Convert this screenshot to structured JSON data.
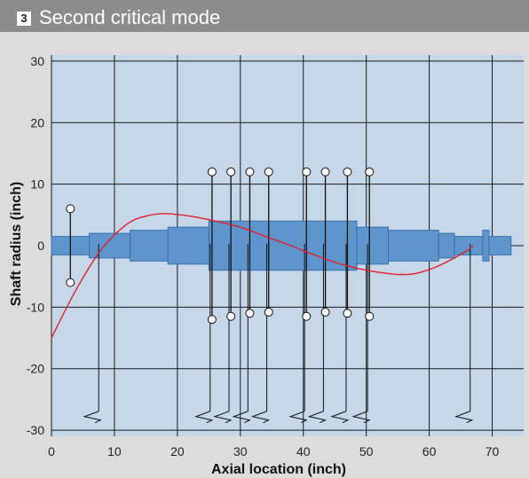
{
  "header": {
    "number": "3",
    "title": "Second critical mode"
  },
  "axes": {
    "xlabel": "Axial location (inch)",
    "ylabel": "Shaft radius (inch)",
    "xlim": [
      0,
      75
    ],
    "ylim": [
      -31,
      31
    ],
    "xticks": [
      "0",
      "10",
      "20",
      "30",
      "40",
      "50",
      "60",
      "70"
    ],
    "yticks": [
      "30",
      "20",
      "10",
      "0",
      "-10",
      "-20",
      "-30"
    ]
  },
  "colors": {
    "header_bg": "#8c8c8c",
    "panel_bg": "#dcdcdc",
    "plot_bg": "#c6d7ea",
    "grid": "#1a1a1a",
    "shaft_fill": "#5e95cc",
    "shaft_stroke": "#3a6fa8",
    "mode_curve": "#e0202a"
  },
  "shaft_sections": [
    {
      "x0": 0,
      "x1": 6,
      "r": 1.5
    },
    {
      "x0": 6,
      "x1": 12.5,
      "r": 2
    },
    {
      "x0": 12.5,
      "x1": 18.5,
      "r": 2.5
    },
    {
      "x0": 18.5,
      "x1": 25,
      "r": 3
    },
    {
      "x0": 25,
      "x1": 48.5,
      "r": 4
    },
    {
      "x0": 48.5,
      "x1": 53.5,
      "r": 3
    },
    {
      "x0": 53.5,
      "x1": 61.5,
      "r": 2.5
    },
    {
      "x0": 61.5,
      "x1": 64,
      "r": 2
    },
    {
      "x0": 64,
      "x1": 68.5,
      "r": 1.5
    },
    {
      "x0": 68.5,
      "x1": 69.5,
      "r": 2.5
    },
    {
      "x0": 69.5,
      "x1": 73,
      "r": 1.5
    }
  ],
  "mode_shape": [
    [
      0,
      -15
    ],
    [
      4,
      -7
    ],
    [
      8,
      -0.5
    ],
    [
      12,
      3.5
    ],
    [
      15,
      4.8
    ],
    [
      18,
      5.2
    ],
    [
      22,
      4.8
    ],
    [
      26,
      4
    ],
    [
      30,
      3
    ],
    [
      34,
      1.5
    ],
    [
      38,
      0
    ],
    [
      42,
      -1.6
    ],
    [
      46,
      -3
    ],
    [
      50,
      -4
    ],
    [
      54,
      -4.6
    ],
    [
      56,
      -4.7
    ],
    [
      58,
      -4.5
    ],
    [
      61,
      -3.5
    ],
    [
      64,
      -2
    ],
    [
      66,
      -0.8
    ],
    [
      67,
      0
    ]
  ],
  "disks": [
    {
      "x": 3,
      "top": 6,
      "bottom": -6
    },
    {
      "x": 25.5,
      "top": 12,
      "bottom": -12
    },
    {
      "x": 28.5,
      "top": 12,
      "bottom": -11.5
    },
    {
      "x": 31.5,
      "top": 12,
      "bottom": -11
    },
    {
      "x": 34.5,
      "top": 12,
      "bottom": -10.8
    },
    {
      "x": 40.5,
      "top": 12,
      "bottom": -11.5
    },
    {
      "x": 43.5,
      "top": 12,
      "bottom": -10.8
    },
    {
      "x": 47,
      "top": 12,
      "bottom": -11
    },
    {
      "x": 50.5,
      "top": 12,
      "bottom": -11.5
    }
  ],
  "springs": [
    7.5,
    25.2,
    28.2,
    31.2,
    34.2,
    40.2,
    43.2,
    46.8,
    50.2,
    66.5
  ]
}
